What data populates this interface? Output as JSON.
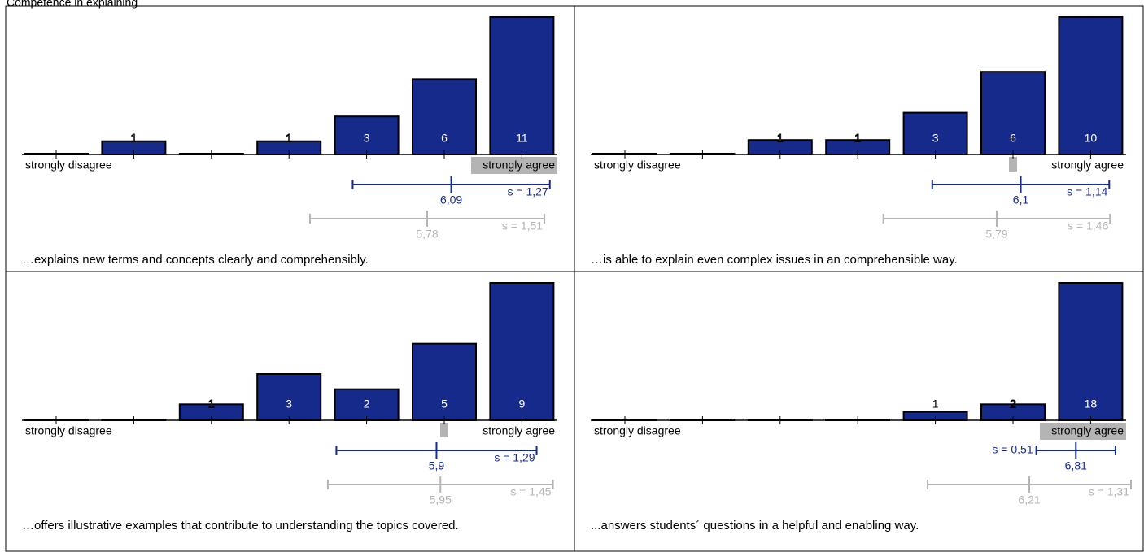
{
  "title": "Competence in explaining",
  "chart_data": [
    {
      "type": "bar",
      "question": "…explains new terms and concepts clearly and comprehensibly.",
      "categories": [
        "strongly disagree",
        null,
        null,
        null,
        null,
        null,
        "strongly agree"
      ],
      "values": [
        0,
        1,
        0,
        1,
        3,
        6,
        11
      ],
      "median": 7,
      "mean": {
        "value": 6.09,
        "label": "6,09"
      },
      "sd": {
        "value": 1.27,
        "label": "s = 1,27"
      },
      "comparison_mean": {
        "value": 5.78,
        "label": "5,78"
      },
      "comparison_sd": {
        "value": 1.51,
        "label": "s = 1,51"
      },
      "color": "#162a8c",
      "comparison_color": "#b4b4b4"
    },
    {
      "type": "bar",
      "question": "…is able to explain even complex issues in an comprehensible way.",
      "categories": [
        "strongly disagree",
        null,
        null,
        null,
        null,
        null,
        "strongly agree"
      ],
      "values": [
        0,
        0,
        1,
        1,
        3,
        6,
        10
      ],
      "median": 6,
      "mean": {
        "value": 6.1,
        "label": "6,1"
      },
      "sd": {
        "value": 1.14,
        "label": "s = 1,14"
      },
      "comparison_mean": {
        "value": 5.79,
        "label": "5,79"
      },
      "comparison_sd": {
        "value": 1.46,
        "label": "s = 1,46"
      },
      "color": "#162a8c",
      "comparison_color": "#b4b4b4"
    },
    {
      "type": "bar",
      "question": "…offers illustrative examples that contribute to understanding the topics covered.",
      "categories": [
        "strongly disagree",
        null,
        null,
        null,
        null,
        null,
        "strongly agree"
      ],
      "values": [
        0,
        0,
        1,
        3,
        2,
        5,
        9
      ],
      "median": 6,
      "mean": {
        "value": 5.9,
        "label": "5,9"
      },
      "sd": {
        "value": 1.29,
        "label": "s = 1,29"
      },
      "comparison_mean": {
        "value": 5.95,
        "label": "5,95"
      },
      "comparison_sd": {
        "value": 1.45,
        "label": "s = 1,45"
      },
      "color": "#162a8c",
      "comparison_color": "#b4b4b4"
    },
    {
      "type": "bar",
      "question": "...answers students´ questions in a helpful and enabling way.",
      "categories": [
        "strongly disagree",
        null,
        null,
        null,
        null,
        null,
        "strongly agree"
      ],
      "values": [
        0,
        0,
        0,
        0,
        1,
        2,
        18
      ],
      "median": 7,
      "mean": {
        "value": 6.81,
        "label": "6,81"
      },
      "sd": {
        "value": 0.51,
        "label": "s = 0,51"
      },
      "comparison_mean": {
        "value": 6.21,
        "label": "6,21"
      },
      "comparison_sd": {
        "value": 1.31,
        "label": "s = 1,31"
      },
      "color": "#162a8c",
      "comparison_color": "#b4b4b4"
    }
  ]
}
